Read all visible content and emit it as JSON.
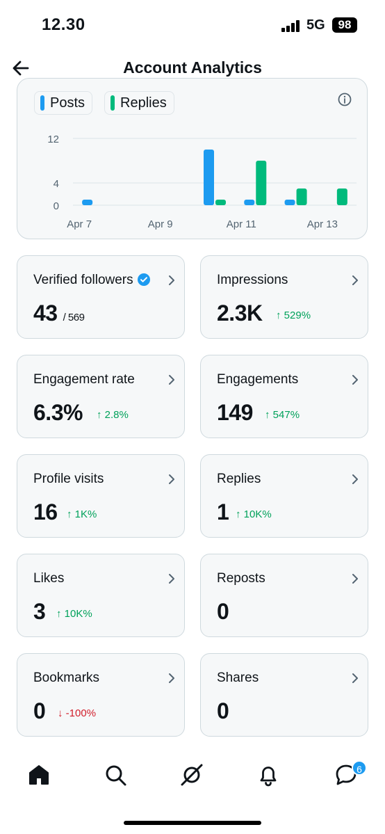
{
  "status_bar": {
    "time": "12.30",
    "network": "5G",
    "battery": "98"
  },
  "header": {
    "title": "Account Analytics"
  },
  "chart": {
    "legend": [
      {
        "label": "Posts",
        "color": "#1d9bf0"
      },
      {
        "label": "Replies",
        "color": "#00ba7c"
      }
    ]
  },
  "chart_data": {
    "type": "bar",
    "categories": [
      "Apr 7",
      "Apr 8",
      "Apr 9",
      "Apr 10",
      "Apr 11",
      "Apr 12",
      "Apr 13"
    ],
    "x_tick_labels": [
      "Apr 7",
      "Apr 9",
      "Apr 11",
      "Apr 13"
    ],
    "y_tick_labels": [
      "12",
      "4",
      "0"
    ],
    "y_ticks": [
      12,
      4,
      0
    ],
    "ylim": [
      0,
      12
    ],
    "series": [
      {
        "name": "Posts",
        "color": "#1d9bf0",
        "values": [
          1,
          0,
          0,
          10,
          1,
          1,
          0
        ]
      },
      {
        "name": "Replies",
        "color": "#00ba7c",
        "values": [
          0,
          0,
          0,
          1,
          8,
          3,
          3
        ]
      }
    ],
    "grid": true,
    "legend_position": "top-left"
  },
  "metrics": [
    {
      "label": "Verified followers",
      "value": "43",
      "sub": "/ 569",
      "change": "",
      "verified": true
    },
    {
      "label": "Impressions",
      "value": "2.3K",
      "change": "↑ 529%",
      "direction": "up"
    },
    {
      "label": "Engagement rate",
      "value": "6.3%",
      "change": "↑ 2.8%",
      "direction": "up"
    },
    {
      "label": "Engagements",
      "value": "149",
      "change": "↑ 547%",
      "direction": "up"
    },
    {
      "label": "Profile visits",
      "value": "16",
      "change": "↑ 1K%",
      "direction": "up"
    },
    {
      "label": "Replies",
      "value": "1",
      "change": "↑ 10K%",
      "direction": "up"
    },
    {
      "label": "Likes",
      "value": "3",
      "change": "↑ 10K%",
      "direction": "up"
    },
    {
      "label": "Reposts",
      "value": "0",
      "change": "",
      "direction": ""
    },
    {
      "label": "Bookmarks",
      "value": "0",
      "change": "↓ -100%",
      "direction": "down"
    },
    {
      "label": "Shares",
      "value": "0",
      "change": "",
      "direction": ""
    }
  ],
  "bottom_nav": {
    "items": [
      "home-icon",
      "search-icon",
      "grok-icon",
      "notifications-icon",
      "messages-icon"
    ],
    "messages_badge": "6"
  }
}
